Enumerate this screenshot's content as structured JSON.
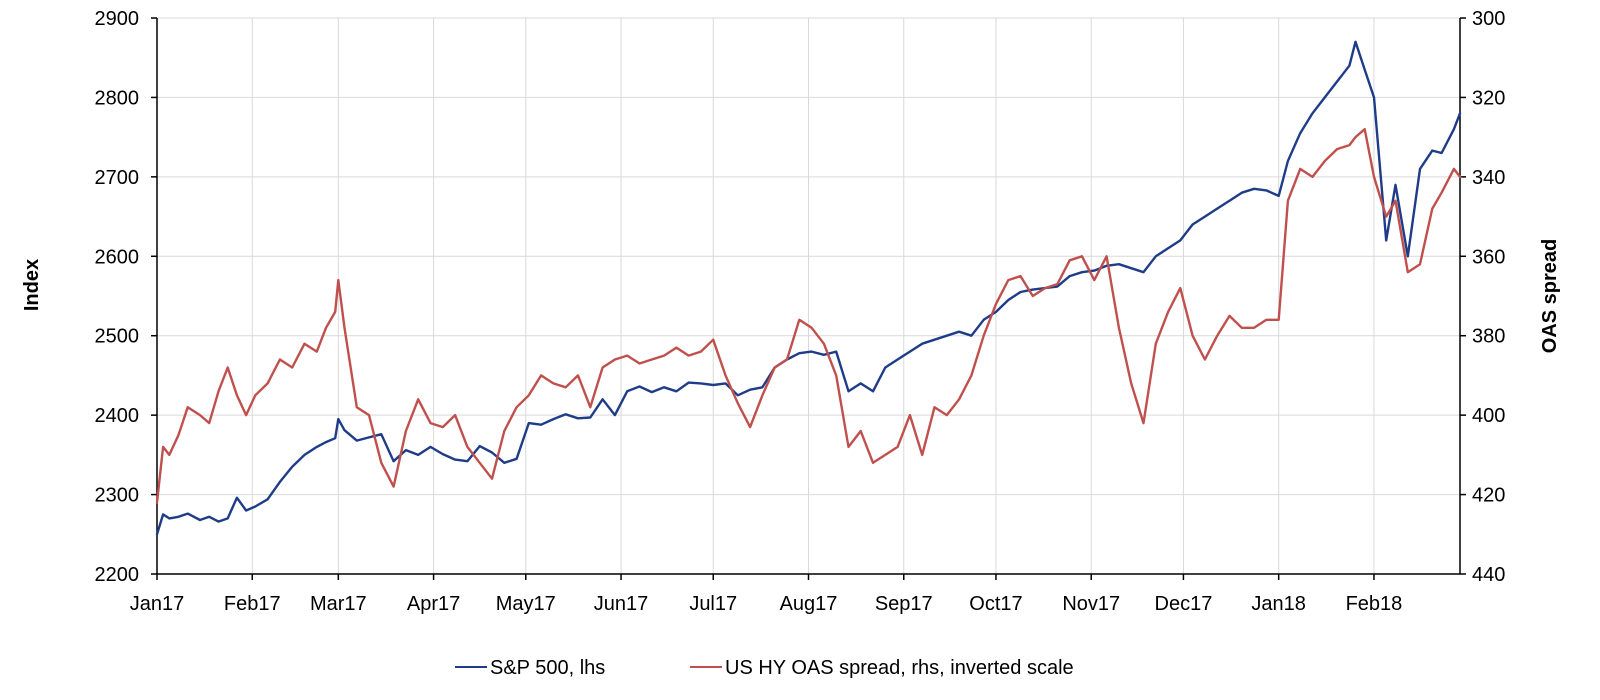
{
  "chart_data": {
    "type": "line",
    "title": "",
    "xlabel": "",
    "ylabel": "Index",
    "y2label": "OAS spread",
    "ylim": [
      2200,
      2900
    ],
    "y2lim": [
      300,
      440
    ],
    "y2_inverted": true,
    "yticks": [
      2200,
      2300,
      2400,
      2500,
      2600,
      2700,
      2800,
      2900
    ],
    "y2ticks": [
      300,
      320,
      340,
      360,
      380,
      400,
      420,
      440
    ],
    "xlim": [
      "2017-01-01",
      "2018-03-01"
    ],
    "xticks": [
      {
        "date": "2017-01-01",
        "label": "Jan17"
      },
      {
        "date": "2017-02-01",
        "label": "Feb17"
      },
      {
        "date": "2017-03-01",
        "label": "Mar17"
      },
      {
        "date": "2017-04-01",
        "label": "Apr17"
      },
      {
        "date": "2017-05-01",
        "label": "May17"
      },
      {
        "date": "2017-06-01",
        "label": "Jun17"
      },
      {
        "date": "2017-07-01",
        "label": "Jul17"
      },
      {
        "date": "2017-08-01",
        "label": "Aug17"
      },
      {
        "date": "2017-09-01",
        "label": "Sep17"
      },
      {
        "date": "2017-10-01",
        "label": "Oct17"
      },
      {
        "date": "2017-11-01",
        "label": "Nov17"
      },
      {
        "date": "2017-12-01",
        "label": "Dec17"
      },
      {
        "date": "2018-01-01",
        "label": "Jan18"
      },
      {
        "date": "2018-02-01",
        "label": "Feb18"
      }
    ],
    "grid": "vertical and horizontal",
    "legend_position": "bottom-center",
    "series": [
      {
        "name": "S&P 500, lhs",
        "axis": "left",
        "color": "#1f3c88",
        "x": [
          "2017-01-01",
          "2017-01-03",
          "2017-01-05",
          "2017-01-08",
          "2017-01-11",
          "2017-01-15",
          "2017-01-18",
          "2017-01-21",
          "2017-01-24",
          "2017-01-27",
          "2017-01-30",
          "2017-02-02",
          "2017-02-06",
          "2017-02-10",
          "2017-02-14",
          "2017-02-18",
          "2017-02-22",
          "2017-02-25",
          "2017-02-28",
          "2017-03-01",
          "2017-03-03",
          "2017-03-07",
          "2017-03-11",
          "2017-03-15",
          "2017-03-19",
          "2017-03-23",
          "2017-03-27",
          "2017-03-31",
          "2017-04-04",
          "2017-04-08",
          "2017-04-12",
          "2017-04-16",
          "2017-04-20",
          "2017-04-24",
          "2017-04-28",
          "2017-05-02",
          "2017-05-06",
          "2017-05-10",
          "2017-05-14",
          "2017-05-18",
          "2017-05-22",
          "2017-05-26",
          "2017-05-30",
          "2017-06-03",
          "2017-06-07",
          "2017-06-11",
          "2017-06-15",
          "2017-06-19",
          "2017-06-23",
          "2017-06-27",
          "2017-07-01",
          "2017-07-05",
          "2017-07-09",
          "2017-07-13",
          "2017-07-17",
          "2017-07-21",
          "2017-07-25",
          "2017-07-29",
          "2017-08-02",
          "2017-08-06",
          "2017-08-10",
          "2017-08-14",
          "2017-08-18",
          "2017-08-22",
          "2017-08-26",
          "2017-08-30",
          "2017-09-03",
          "2017-09-07",
          "2017-09-11",
          "2017-09-15",
          "2017-09-19",
          "2017-09-23",
          "2017-09-27",
          "2017-10-01",
          "2017-10-05",
          "2017-10-09",
          "2017-10-13",
          "2017-10-17",
          "2017-10-21",
          "2017-10-25",
          "2017-10-29",
          "2017-11-02",
          "2017-11-06",
          "2017-11-10",
          "2017-11-14",
          "2017-11-18",
          "2017-11-22",
          "2017-11-26",
          "2017-11-30",
          "2017-12-04",
          "2017-12-08",
          "2017-12-12",
          "2017-12-16",
          "2017-12-20",
          "2017-12-24",
          "2017-12-28",
          "2018-01-01",
          "2018-01-04",
          "2018-01-08",
          "2018-01-12",
          "2018-01-16",
          "2018-01-20",
          "2018-01-24",
          "2018-01-26",
          "2018-01-29",
          "2018-02-01",
          "2018-02-05",
          "2018-02-08",
          "2018-02-12",
          "2018-02-16",
          "2018-02-20",
          "2018-02-23",
          "2018-02-27",
          "2018-03-01"
        ],
        "y": [
          2250,
          2275,
          2270,
          2272,
          2276,
          2268,
          2272,
          2266,
          2270,
          2296,
          2280,
          2285,
          2294,
          2316,
          2335,
          2350,
          2360,
          2366,
          2371,
          2395,
          2381,
          2368,
          2372,
          2376,
          2342,
          2356,
          2350,
          2360,
          2351,
          2344,
          2342,
          2361,
          2353,
          2340,
          2345,
          2390,
          2388,
          2395,
          2401,
          2396,
          2397,
          2420,
          2400,
          2430,
          2436,
          2429,
          2435,
          2430,
          2441,
          2440,
          2438,
          2440,
          2425,
          2432,
          2435,
          2460,
          2470,
          2478,
          2480,
          2476,
          2480,
          2430,
          2440,
          2430,
          2460,
          2470,
          2480,
          2490,
          2495,
          2500,
          2505,
          2500,
          2520,
          2530,
          2545,
          2555,
          2558,
          2560,
          2562,
          2575,
          2580,
          2582,
          2588,
          2590,
          2585,
          2580,
          2600,
          2610,
          2620,
          2640,
          2650,
          2660,
          2670,
          2680,
          2685,
          2683,
          2676,
          2720,
          2755,
          2780,
          2800,
          2820,
          2840,
          2870,
          2835,
          2800,
          2620,
          2690,
          2600,
          2710,
          2733,
          2730,
          2760,
          2780
        ]
      },
      {
        "name": "US HY OAS spread, rhs, inverted scale",
        "axis": "right",
        "color": "#c0504d",
        "x": [
          "2017-01-01",
          "2017-01-03",
          "2017-01-05",
          "2017-01-08",
          "2017-01-11",
          "2017-01-15",
          "2017-01-18",
          "2017-01-21",
          "2017-01-24",
          "2017-01-27",
          "2017-01-30",
          "2017-02-02",
          "2017-02-06",
          "2017-02-10",
          "2017-02-14",
          "2017-02-18",
          "2017-02-22",
          "2017-02-25",
          "2017-02-28",
          "2017-03-01",
          "2017-03-03",
          "2017-03-07",
          "2017-03-11",
          "2017-03-15",
          "2017-03-19",
          "2017-03-23",
          "2017-03-27",
          "2017-03-31",
          "2017-04-04",
          "2017-04-08",
          "2017-04-12",
          "2017-04-16",
          "2017-04-20",
          "2017-04-24",
          "2017-04-28",
          "2017-05-02",
          "2017-05-06",
          "2017-05-10",
          "2017-05-14",
          "2017-05-18",
          "2017-05-22",
          "2017-05-26",
          "2017-05-30",
          "2017-06-03",
          "2017-06-07",
          "2017-06-11",
          "2017-06-15",
          "2017-06-19",
          "2017-06-23",
          "2017-06-27",
          "2017-07-01",
          "2017-07-05",
          "2017-07-09",
          "2017-07-13",
          "2017-07-17",
          "2017-07-21",
          "2017-07-25",
          "2017-07-29",
          "2017-08-02",
          "2017-08-06",
          "2017-08-10",
          "2017-08-14",
          "2017-08-18",
          "2017-08-22",
          "2017-08-26",
          "2017-08-30",
          "2017-09-03",
          "2017-09-07",
          "2017-09-11",
          "2017-09-15",
          "2017-09-19",
          "2017-09-23",
          "2017-09-27",
          "2017-10-01",
          "2017-10-05",
          "2017-10-09",
          "2017-10-13",
          "2017-10-17",
          "2017-10-21",
          "2017-10-25",
          "2017-10-29",
          "2017-11-02",
          "2017-11-06",
          "2017-11-10",
          "2017-11-14",
          "2017-11-18",
          "2017-11-22",
          "2017-11-26",
          "2017-11-30",
          "2017-12-04",
          "2017-12-08",
          "2017-12-12",
          "2017-12-16",
          "2017-12-20",
          "2017-12-24",
          "2017-12-28",
          "2018-01-01",
          "2018-01-04",
          "2018-01-08",
          "2018-01-12",
          "2018-01-16",
          "2018-01-20",
          "2018-01-24",
          "2018-01-26",
          "2018-01-29",
          "2018-02-01",
          "2018-02-05",
          "2018-02-08",
          "2018-02-12",
          "2018-02-16",
          "2018-02-20",
          "2018-02-23",
          "2018-02-27",
          "2018-03-01"
        ],
        "y": [
          422,
          408,
          410,
          405,
          398,
          400,
          402,
          394,
          388,
          395,
          400,
          395,
          392,
          386,
          388,
          382,
          384,
          378,
          374,
          366,
          378,
          398,
          400,
          412,
          418,
          404,
          396,
          402,
          403,
          400,
          408,
          412,
          416,
          404,
          398,
          395,
          390,
          392,
          393,
          390,
          398,
          388,
          386,
          385,
          387,
          386,
          385,
          383,
          385,
          384,
          381,
          390,
          397,
          403,
          395,
          388,
          386,
          376,
          378,
          382,
          390,
          408,
          404,
          412,
          410,
          408,
          400,
          410,
          398,
          400,
          396,
          390,
          380,
          372,
          366,
          365,
          370,
          368,
          367,
          361,
          360,
          366,
          360,
          378,
          392,
          402,
          382,
          374,
          368,
          380,
          386,
          380,
          375,
          378,
          378,
          376,
          376,
          346,
          338,
          340,
          336,
          333,
          332,
          330,
          328,
          340,
          350,
          346,
          364,
          362,
          348,
          344,
          338,
          340
        ]
      }
    ]
  }
}
